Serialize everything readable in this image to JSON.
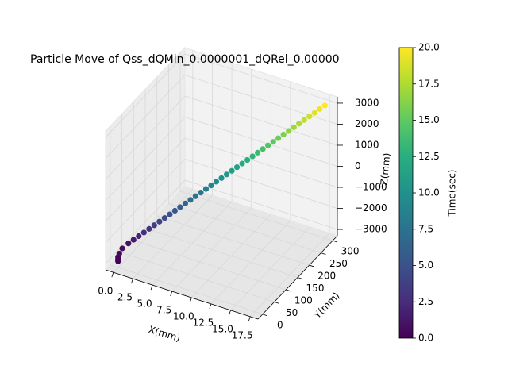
{
  "chart_data": {
    "type": "scatter3d",
    "title": "Particle Move of  Qss_dQMin_0.0000001_dQRel_0.00000",
    "xlabel": "X(mm)",
    "ylabel": "Y(mm)",
    "zlabel": "Z(mm)",
    "colorbar_label": "Time(sec)",
    "colormap": "viridis",
    "grid": true,
    "x": [
      0,
      0,
      0,
      0,
      0.1,
      0.3,
      0.875,
      1.31,
      1.75,
      2.19,
      2.63,
      3.06,
      3.5,
      3.94,
      4.38,
      4.81,
      5.25,
      5.69,
      6.13,
      6.56,
      7,
      7.44,
      7.88,
      8.31,
      8.75,
      9.19,
      9.63,
      10.06,
      10.5,
      10.94,
      11.38,
      11.81,
      12.25,
      12.69,
      13.13,
      13.56,
      14,
      14.44,
      14.88,
      15.31,
      15.75,
      16.19,
      16.63,
      17.06,
      17.5
    ],
    "y": [
      0,
      0,
      0,
      0,
      2,
      8,
      15,
      22.5,
      30,
      37.5,
      45,
      52.5,
      60,
      67.5,
      75,
      82.5,
      90,
      97.5,
      105,
      112.5,
      120,
      127.5,
      135,
      142.5,
      150,
      157.5,
      165,
      172.5,
      180,
      187.5,
      195,
      202.5,
      210,
      217.5,
      225,
      232.5,
      240,
      247.5,
      255,
      262.5,
      270,
      277.5,
      285,
      292.5,
      300
    ],
    "z": [
      -3000,
      -2950,
      -2880,
      -2800,
      -2650,
      -2450,
      -2225,
      -2087.5,
      -1950,
      -1812.5,
      -1675,
      -1537.5,
      -1400,
      -1262.5,
      -1125,
      -987.5,
      -850,
      -712.5,
      -575,
      -437.5,
      -300,
      -162.5,
      -25,
      112.5,
      250,
      387.5,
      525,
      662.5,
      800,
      937.5,
      1075,
      1212.5,
      1350,
      1487.5,
      1625,
      1762.5,
      1900,
      2037.5,
      2175,
      2312.5,
      2450,
      2587.5,
      2725,
      2862.5,
      3000
    ],
    "t": [
      0,
      0.1,
      0.2,
      0.3,
      0.5,
      0.8,
      1,
      1.5,
      2,
      2.5,
      3,
      3.5,
      4,
      4.5,
      5,
      5.5,
      6,
      6.5,
      7,
      7.5,
      8,
      8.5,
      9,
      9.5,
      10,
      10.5,
      11,
      11.5,
      12,
      12.5,
      13,
      13.5,
      14,
      14.5,
      15,
      15.5,
      16,
      16.5,
      17,
      17.5,
      18,
      18.5,
      19,
      19.5,
      20
    ],
    "xlim": [
      -1,
      18.5
    ],
    "ylim": [
      -20,
      320
    ],
    "zlim": [
      -3300,
      3300
    ],
    "clim": [
      0,
      20
    ],
    "xticks": [
      {
        "value": 0,
        "label": "0.0"
      },
      {
        "value": 2.5,
        "label": "2.5"
      },
      {
        "value": 5,
        "label": "5.0"
      },
      {
        "value": 7.5,
        "label": "7.5"
      },
      {
        "value": 10,
        "label": "10.0"
      },
      {
        "value": 12.5,
        "label": "12.5"
      },
      {
        "value": 15,
        "label": "15.0"
      },
      {
        "value": 17.5,
        "label": "17.5"
      }
    ],
    "yticks": [
      0,
      50,
      100,
      150,
      200,
      250,
      300
    ],
    "zticks": [
      {
        "value": -3000,
        "label": "−3000"
      },
      {
        "value": -2000,
        "label": "−2000"
      },
      {
        "value": -1000,
        "label": "−1000"
      },
      0,
      1000,
      2000,
      3000
    ],
    "cticks": [
      {
        "value": 0,
        "label": "0.0"
      },
      {
        "value": 2.5,
        "label": "2.5"
      },
      {
        "value": 5,
        "label": "5.0"
      },
      {
        "value": 7.5,
        "label": "7.5"
      },
      {
        "value": 10,
        "label": "10.0"
      },
      {
        "value": 12.5,
        "label": "12.5"
      },
      {
        "value": 15,
        "label": "15.0"
      },
      {
        "value": 17.5,
        "label": "17.5"
      },
      {
        "value": 20,
        "label": "20.0"
      }
    ]
  }
}
